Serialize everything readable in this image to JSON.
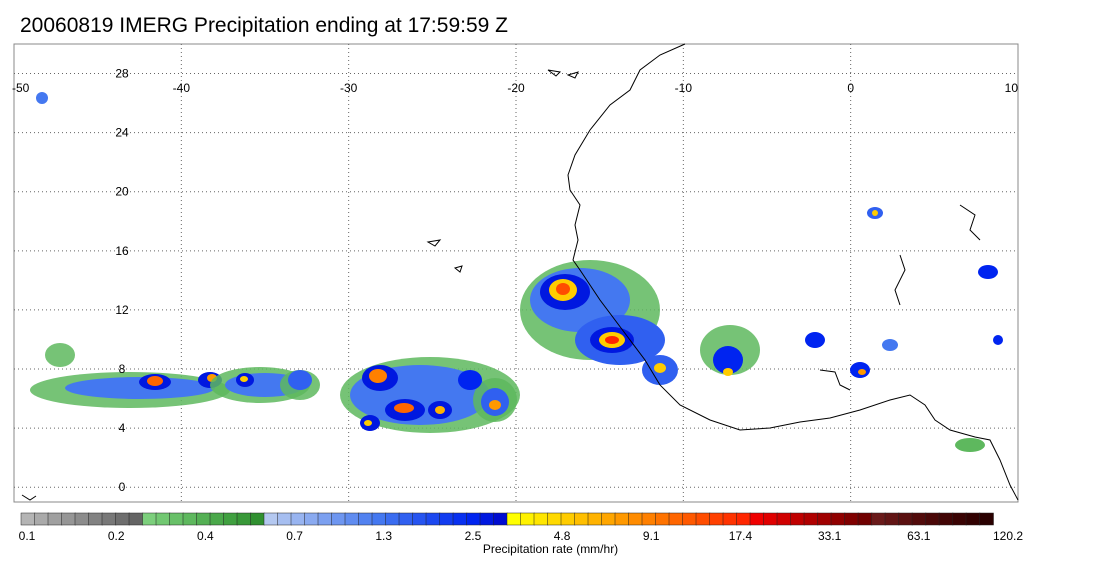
{
  "title": "20060819 IMERG Precipitation ending at 17:59:59 Z",
  "map": {
    "lon_range": [
      -50,
      10
    ],
    "lat_range": [
      -1,
      30
    ],
    "lon_ticks": [
      "-50",
      "-40",
      "-30",
      "-20",
      "-10",
      "0",
      "10"
    ],
    "lat_ticks": [
      "28",
      "24",
      "20",
      "16",
      "12",
      "8",
      "4",
      "0"
    ],
    "grid": "dotted",
    "land_outline_color": "#000000"
  },
  "colorbar": {
    "label": "Precipitation rate (mm/hr)",
    "tick_labels": [
      "0.1",
      "0.2",
      "0.4",
      "0.7",
      "1.3",
      "2.5",
      "4.8",
      "9.1",
      "17.4",
      "33.1",
      "63.1",
      "120.2"
    ],
    "colors": [
      "#b4b4b4",
      "#aaaaaa",
      "#a0a0a0",
      "#969696",
      "#8c8c8c",
      "#828282",
      "#787878",
      "#6e6e6e",
      "#646464",
      "#7ccf7c",
      "#72c872",
      "#68c068",
      "#5eb85e",
      "#54b054",
      "#4aa84a",
      "#40a040",
      "#389838",
      "#309030",
      "#b4c8f0",
      "#a6bef0",
      "#98b4f0",
      "#8aaaf0",
      "#7ca0f0",
      "#6e96f0",
      "#608cf0",
      "#5282f0",
      "#4478f0",
      "#3a6cf0",
      "#3060f0",
      "#2654f0",
      "#1c48f0",
      "#123cf0",
      "#0830f0",
      "#0024f0",
      "#0018e0",
      "#000cd0",
      "#ffff00",
      "#fff200",
      "#ffe600",
      "#ffd900",
      "#ffcc00",
      "#ffbf00",
      "#ffb300",
      "#ffa600",
      "#ff9900",
      "#ff8c00",
      "#ff8000",
      "#ff7300",
      "#ff6600",
      "#ff5900",
      "#ff4d00",
      "#ff4000",
      "#ff3300",
      "#ff2600",
      "#f00000",
      "#e00000",
      "#d00000",
      "#c00000",
      "#b00000",
      "#a00000",
      "#900000",
      "#800000",
      "#700000",
      "#6a1a1a",
      "#621515",
      "#5a1010",
      "#520b0b",
      "#4a0808",
      "#420505",
      "#3a0303",
      "#320101",
      "#2a0000"
    ]
  }
}
